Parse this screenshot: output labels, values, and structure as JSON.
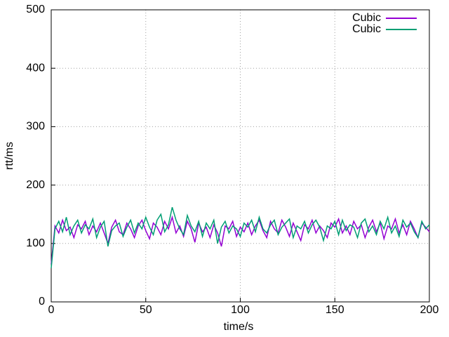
{
  "chart_data": {
    "type": "line",
    "xlabel": "time/s",
    "ylabel": "rtt/ms",
    "xlim": [
      0,
      200
    ],
    "xticks": [
      0,
      50,
      100,
      150,
      200
    ],
    "ylim": [
      0,
      500
    ],
    "yticks": [
      0,
      100,
      200,
      300,
      400,
      500
    ],
    "grid": true,
    "legend": "top-right",
    "x": [
      0,
      2,
      4,
      6,
      8,
      10,
      12,
      14,
      16,
      18,
      20,
      22,
      24,
      26,
      28,
      30,
      32,
      34,
      36,
      38,
      40,
      42,
      44,
      46,
      48,
      50,
      52,
      54,
      56,
      58,
      60,
      62,
      64,
      66,
      68,
      70,
      72,
      74,
      76,
      78,
      80,
      82,
      84,
      86,
      88,
      90,
      92,
      94,
      96,
      98,
      100,
      102,
      104,
      106,
      108,
      110,
      112,
      114,
      116,
      118,
      120,
      122,
      124,
      126,
      128,
      130,
      132,
      134,
      136,
      138,
      140,
      142,
      144,
      146,
      148,
      150,
      152,
      154,
      156,
      158,
      160,
      162,
      164,
      166,
      168,
      170,
      172,
      174,
      176,
      178,
      180,
      182,
      184,
      186,
      188,
      190,
      192,
      194,
      196,
      198,
      200
    ],
    "series": [
      {
        "name": "Cubic",
        "color": "#9400d3",
        "values": [
          65,
          130,
          118,
          140,
          122,
          128,
          110,
          132,
          125,
          138,
          115,
          130,
          120,
          135,
          118,
          100,
          128,
          140,
          120,
          115,
          135,
          125,
          110,
          130,
          140,
          122,
          108,
          135,
          128,
          115,
          138,
          125,
          145,
          118,
          130,
          112,
          138,
          125,
          102,
          135,
          120,
          128,
          110,
          132,
          118,
          95,
          130,
          125,
          138,
          112,
          128,
          120,
          135,
          115,
          130,
          140,
          122,
          110,
          138,
          125,
          118,
          140,
          128,
          112,
          135,
          120,
          105,
          132,
          125,
          140,
          118,
          130,
          122,
          110,
          135,
          128,
          142,
          118,
          130,
          115,
          138,
          125,
          132,
          110,
          128,
          140,
          120,
          135,
          108,
          130,
          125,
          142,
          118,
          132,
          115,
          138,
          125,
          110,
          135,
          128,
          120
        ]
      },
      {
        "name": "Cubic",
        "color": "#009e73",
        "values": [
          58,
          125,
          138,
          120,
          145,
          115,
          130,
          140,
          118,
          132,
          125,
          142,
          110,
          128,
          138,
          95,
          122,
          130,
          135,
          112,
          128,
          140,
          118,
          135,
          125,
          145,
          128,
          115,
          140,
          150,
          120,
          132,
          162,
          140,
          125,
          115,
          148,
          130,
          120,
          138,
          112,
          135,
          125,
          140,
          100,
          128,
          138,
          118,
          130,
          125,
          112,
          135,
          128,
          140,
          120,
          145,
          125,
          118,
          132,
          140,
          115,
          128,
          135,
          142,
          110,
          130,
          125,
          138,
          118,
          132,
          140,
          128,
          105,
          130,
          125,
          138,
          115,
          140,
          122,
          132,
          128,
          110,
          135,
          142,
          120,
          130,
          115,
          138,
          125,
          145,
          118,
          130,
          112,
          140,
          128,
          135,
          120,
          110,
          138,
          125,
          132
        ]
      }
    ]
  }
}
